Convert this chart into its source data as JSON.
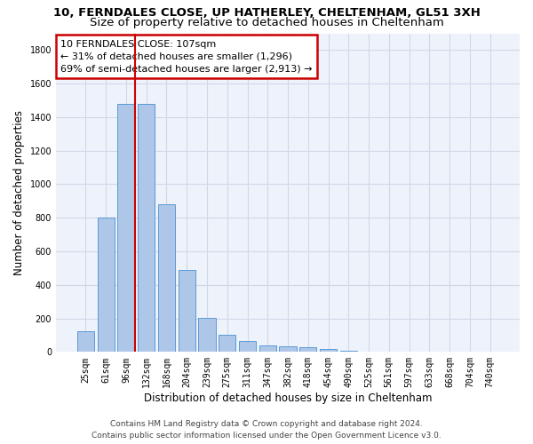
{
  "title_line1": "10, FERNDALES CLOSE, UP HATHERLEY, CHELTENHAM, GL51 3XH",
  "title_line2": "Size of property relative to detached houses in Cheltenham",
  "xlabel": "Distribution of detached houses by size in Cheltenham",
  "ylabel": "Number of detached properties",
  "categories": [
    "25sqm",
    "61sqm",
    "96sqm",
    "132sqm",
    "168sqm",
    "204sqm",
    "239sqm",
    "275sqm",
    "311sqm",
    "347sqm",
    "382sqm",
    "418sqm",
    "454sqm",
    "490sqm",
    "525sqm",
    "561sqm",
    "597sqm",
    "633sqm",
    "668sqm",
    "704sqm",
    "740sqm"
  ],
  "values": [
    125,
    800,
    1480,
    1480,
    880,
    490,
    205,
    105,
    65,
    40,
    35,
    30,
    20,
    5,
    0,
    0,
    0,
    0,
    0,
    0,
    0
  ],
  "bar_color": "#aec6e8",
  "bar_edge_color": "#5b9bd5",
  "vline_x_index": 2,
  "vline_color": "#cc0000",
  "annotation_text": "10 FERNDALES CLOSE: 107sqm\n← 31% of detached houses are smaller (1,296)\n69% of semi-detached houses are larger (2,913) →",
  "annotation_box_color": "#cc0000",
  "ylim": [
    0,
    1900
  ],
  "yticks": [
    0,
    200,
    400,
    600,
    800,
    1000,
    1200,
    1400,
    1600,
    1800
  ],
  "grid_color": "#d0d8e8",
  "bg_color": "#eef2fa",
  "footer_line1": "Contains HM Land Registry data © Crown copyright and database right 2024.",
  "footer_line2": "Contains public sector information licensed under the Open Government Licence v3.0.",
  "title_fontsize": 9.5,
  "subtitle_fontsize": 9.5,
  "annotation_fontsize": 8,
  "tick_fontsize": 7,
  "ylabel_fontsize": 8.5,
  "xlabel_fontsize": 8.5,
  "footer_fontsize": 6.5
}
